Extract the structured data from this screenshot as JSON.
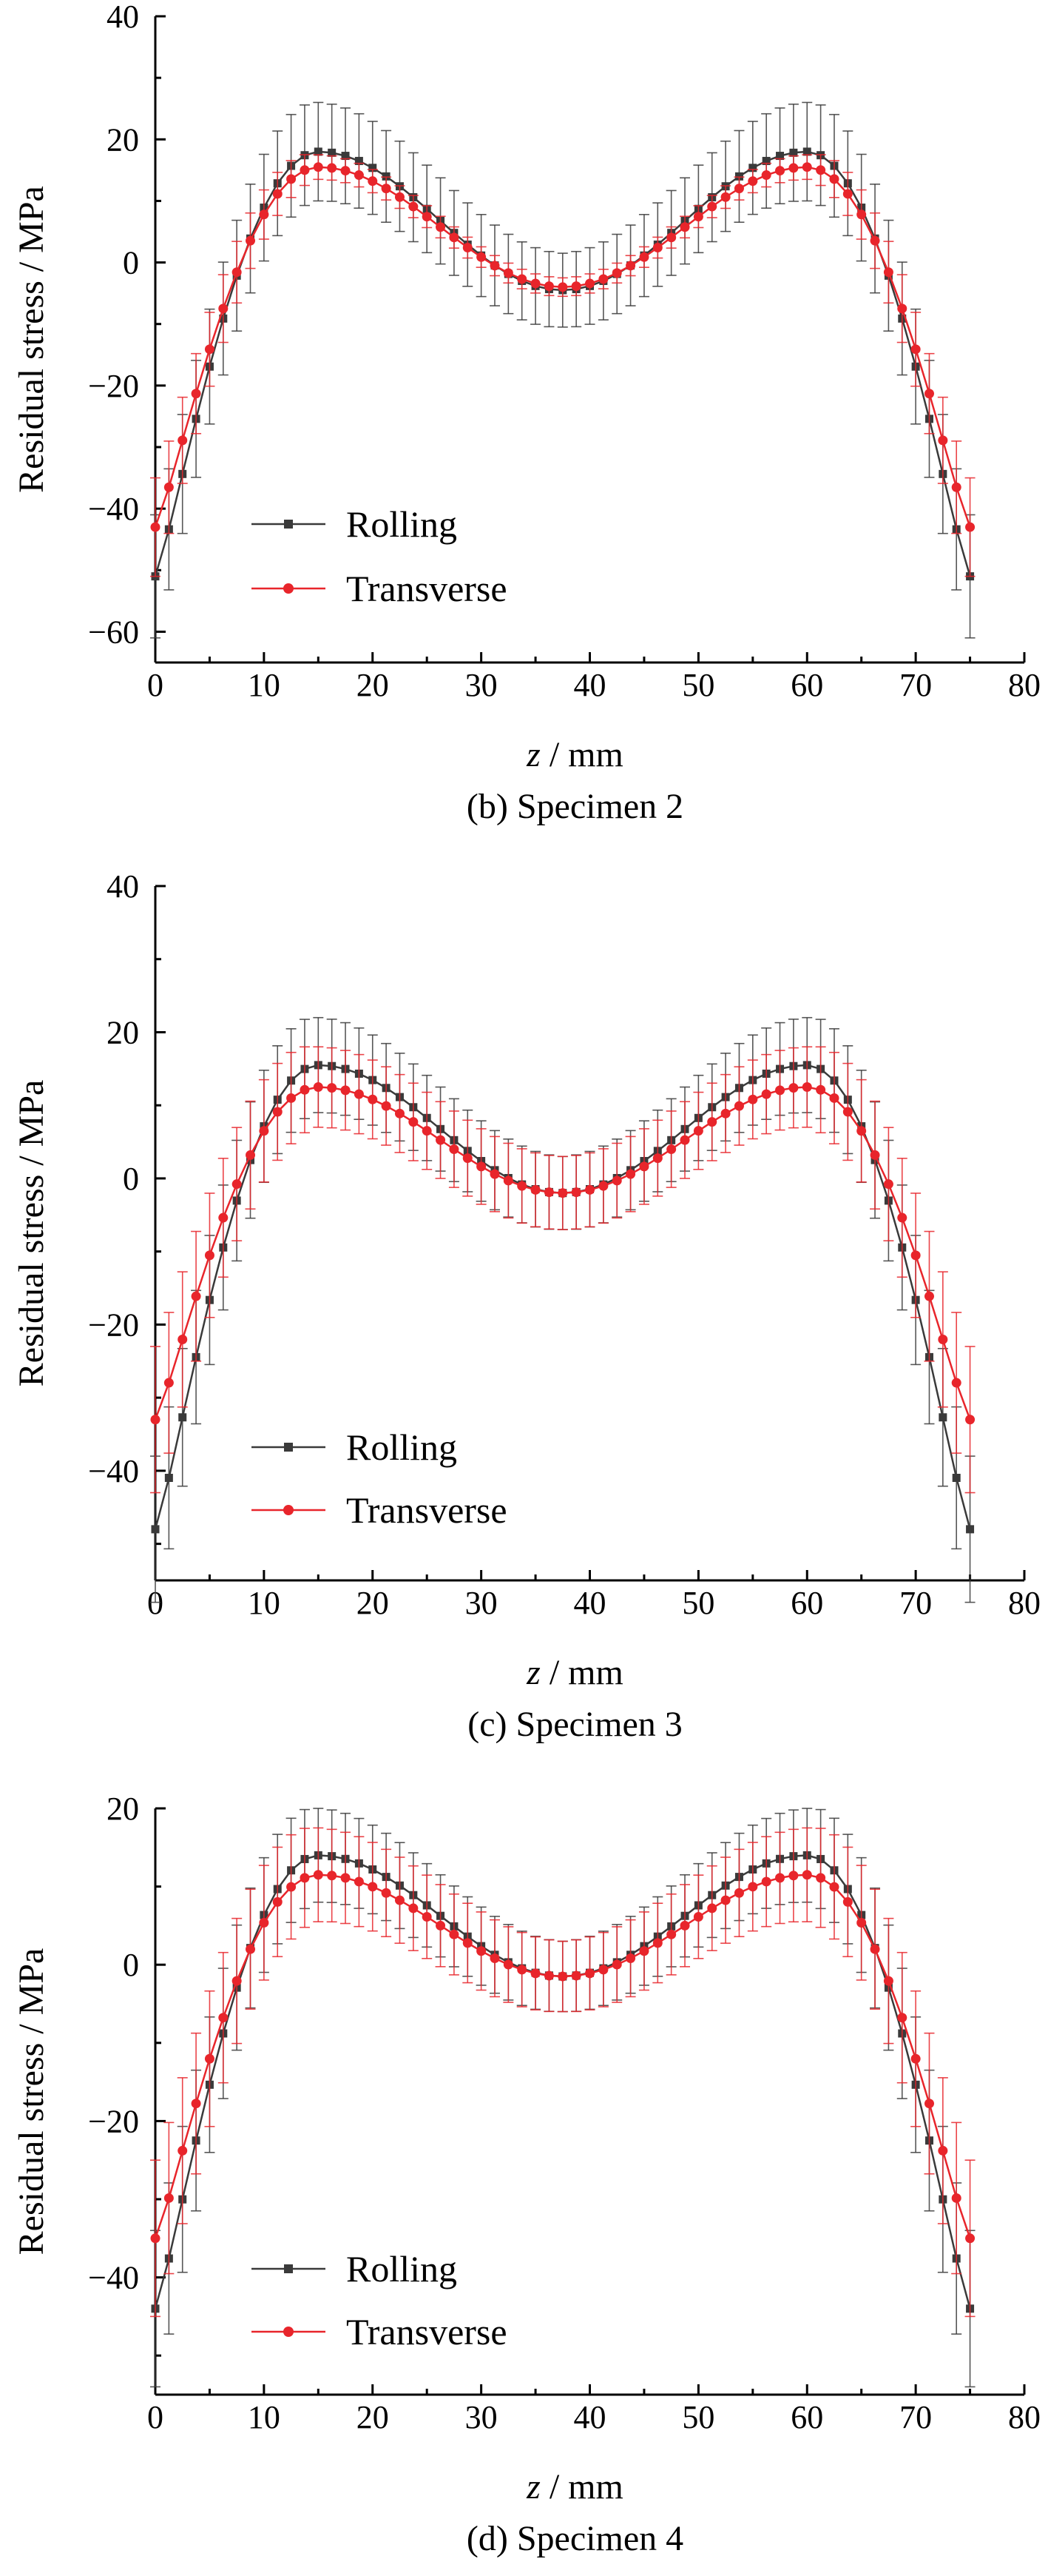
{
  "chart_data": [
    {
      "type": "line",
      "caption": "(b) Specimen 2",
      "xlabel": "z / mm",
      "ylabel": "Residual stress / MPa",
      "xlim": [
        0,
        80
      ],
      "ylim": [
        -65,
        40
      ],
      "xticks": [
        "0",
        "10",
        "20",
        "30",
        "40",
        "50",
        "60",
        "70",
        "80"
      ],
      "yticks": [
        "−60",
        "−40",
        "−20",
        "0",
        "20",
        "40"
      ],
      "legend_position": "bottom-left",
      "series": [
        {
          "name": "Rolling",
          "color": "#3a3a3a",
          "marker": "square",
          "min": -4.5,
          "peak": 18.0,
          "edge": -51,
          "err_peak": 8.0,
          "err_min": 6.0,
          "err_edge": 10.0
        },
        {
          "name": "Transverse",
          "color": "#e8252b",
          "marker": "circle",
          "min": -4.0,
          "peak": 15.5,
          "edge": -43,
          "err_peak": 2.0,
          "err_min": 1.5,
          "err_edge": 8.0
        }
      ]
    },
    {
      "type": "line",
      "caption": "(c) Specimen 3",
      "xlabel": "z / mm",
      "ylabel": "Residual stress / MPa",
      "xlim": [
        0,
        80
      ],
      "ylim": [
        -55,
        40
      ],
      "xticks": [
        "0",
        "10",
        "20",
        "30",
        "40",
        "50",
        "60",
        "70",
        "80"
      ],
      "yticks": [
        "−40",
        "−20",
        "0",
        "20",
        "40"
      ],
      "legend_position": "bottom-left",
      "series": [
        {
          "name": "Rolling",
          "color": "#3a3a3a",
          "marker": "square",
          "min": -2.0,
          "peak": 15.5,
          "edge": -48,
          "err_peak": 6.5,
          "err_min": 5.0,
          "err_edge": 10.0
        },
        {
          "name": "Transverse",
          "color": "#e8252b",
          "marker": "circle",
          "min": -2.0,
          "peak": 12.5,
          "edge": -33,
          "err_peak": 5.5,
          "err_min": 5.0,
          "err_edge": 10.0
        }
      ]
    },
    {
      "type": "line",
      "caption": "(d) Specimen 4",
      "xlabel": "z / mm",
      "ylabel": "Residual stress / MPa",
      "xlim": [
        0,
        80
      ],
      "ylim": [
        -55,
        20
      ],
      "xticks": [
        "0",
        "10",
        "20",
        "30",
        "40",
        "50",
        "60",
        "70",
        "80"
      ],
      "yticks": [
        "−40",
        "−20",
        "0",
        "20"
      ],
      "legend_position": "bottom-left",
      "series": [
        {
          "name": "Rolling",
          "color": "#3a3a3a",
          "marker": "square",
          "min": -1.5,
          "peak": 14.0,
          "edge": -44,
          "err_peak": 6.0,
          "err_min": 4.5,
          "err_edge": 10.0
        },
        {
          "name": "Transverse",
          "color": "#e8252b",
          "marker": "circle",
          "min": -1.5,
          "peak": 11.5,
          "edge": -35,
          "err_peak": 6.0,
          "err_min": 4.5,
          "err_edge": 10.0
        }
      ]
    }
  ]
}
